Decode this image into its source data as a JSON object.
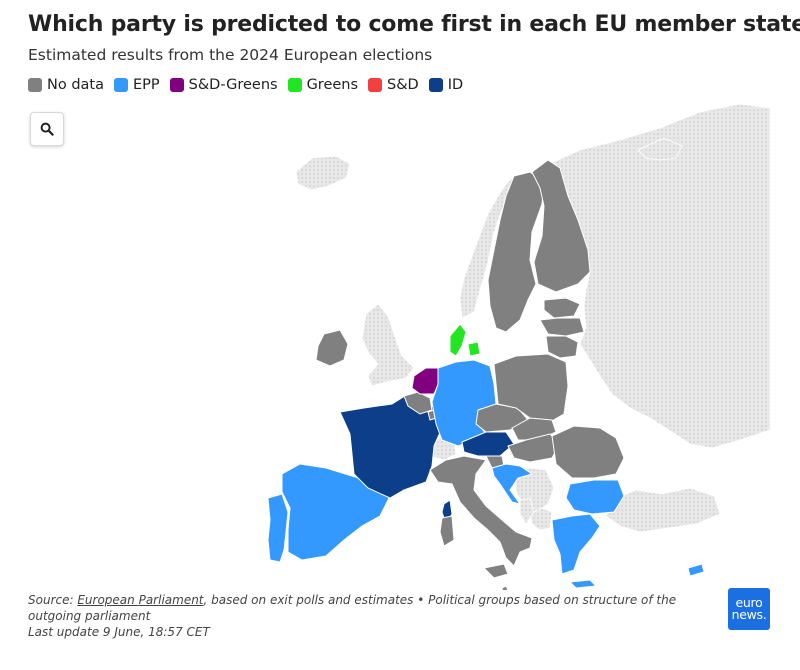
{
  "title": "Which party is predicted to come first in each EU member state?",
  "subtitle": "Estimated results from the 2024 European elections",
  "legend": [
    {
      "label": "No data",
      "color": "#808080"
    },
    {
      "label": "EPP",
      "color": "#3399ff"
    },
    {
      "label": "S&D-Greens",
      "color": "#800080"
    },
    {
      "label": "Greens",
      "color": "#22e622"
    },
    {
      "label": "S&D",
      "color": "#f04040"
    },
    {
      "label": "ID",
      "color": "#0c3e8a"
    }
  ],
  "zoom_button": {
    "icon": "search-icon"
  },
  "map": {
    "countries": [
      {
        "name": "Portugal",
        "group": "EPP"
      },
      {
        "name": "Spain",
        "group": "EPP"
      },
      {
        "name": "France",
        "group": "ID"
      },
      {
        "name": "Belgium",
        "group": "No data"
      },
      {
        "name": "Netherlands",
        "group": "S&D-Greens"
      },
      {
        "name": "Luxembourg",
        "group": "No data"
      },
      {
        "name": "Germany",
        "group": "EPP"
      },
      {
        "name": "Denmark",
        "group": "Greens"
      },
      {
        "name": "Ireland",
        "group": "No data"
      },
      {
        "name": "Austria",
        "group": "ID"
      },
      {
        "name": "Italy",
        "group": "No data"
      },
      {
        "name": "Slovenia",
        "group": "No data"
      },
      {
        "name": "Croatia",
        "group": "EPP"
      },
      {
        "name": "Czechia",
        "group": "No data"
      },
      {
        "name": "Slovakia",
        "group": "No data"
      },
      {
        "name": "Hungary",
        "group": "No data"
      },
      {
        "name": "Poland",
        "group": "No data"
      },
      {
        "name": "Romania",
        "group": "No data"
      },
      {
        "name": "Bulgaria",
        "group": "EPP"
      },
      {
        "name": "Greece",
        "group": "EPP"
      },
      {
        "name": "Cyprus",
        "group": "EPP"
      },
      {
        "name": "Malta",
        "group": "No data"
      },
      {
        "name": "Sweden",
        "group": "No data"
      },
      {
        "name": "Finland",
        "group": "No data"
      },
      {
        "name": "Estonia",
        "group": "No data"
      },
      {
        "name": "Latvia",
        "group": "No data"
      },
      {
        "name": "Lithuania",
        "group": "No data"
      }
    ]
  },
  "footer": {
    "source_prefix": "Source: ",
    "source_link": "European Parliament",
    "source_suffix": ", based on exit polls and estimates • Political groups based on structure of the outgoing parliament",
    "last_update": "Last update 9 June, 18:57 CET"
  },
  "logo": {
    "line1": "euro",
    "line2": "news."
  }
}
